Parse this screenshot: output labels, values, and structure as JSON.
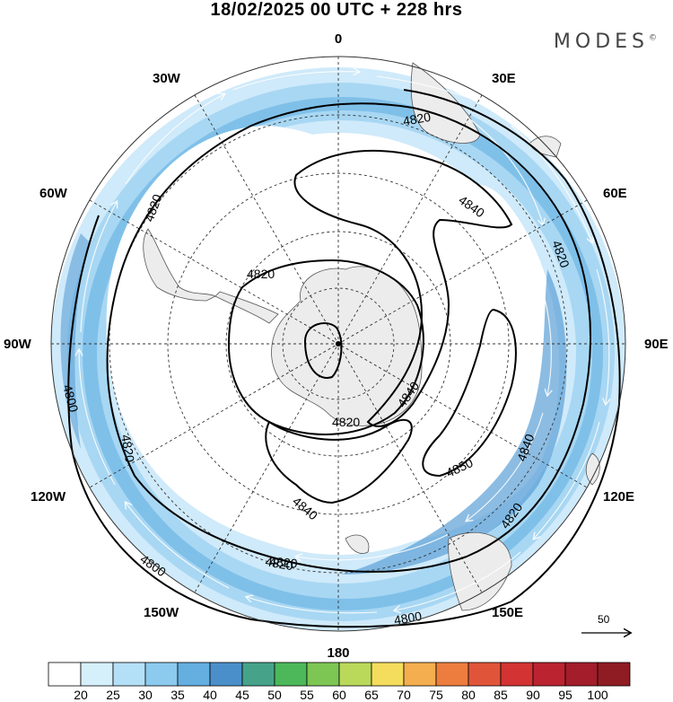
{
  "title": "18/02/2025  00 UTC  + 228 hrs",
  "brand": "MODES",
  "brand_mark": "©",
  "longitude_labels": {
    "lon_0": "0",
    "lon_30e": "30E",
    "lon_60e": "60E",
    "lon_90e": "90E",
    "lon_120e": "120E",
    "lon_150e": "150E",
    "lon_180": "180",
    "lon_150w": "150W",
    "lon_120w": "120W",
    "lon_90w": "90W",
    "lon_60w": "60W",
    "lon_30w": "30W"
  },
  "contour_labels": [
    "4820",
    "4840",
    "4820",
    "4820",
    "4820",
    "4820",
    "4800",
    "4820",
    "4820",
    "4840",
    "4840",
    "4850",
    "4840",
    "4820",
    "4820",
    "4800",
    "4800"
  ],
  "reference_vector": "50",
  "colorbar": {
    "labels": [
      "20",
      "25",
      "30",
      "35",
      "40",
      "45",
      "50",
      "55",
      "60",
      "65",
      "70",
      "75",
      "80",
      "85",
      "90",
      "95",
      "100"
    ],
    "colors": [
      "#ffffff",
      "#d5effb",
      "#b4e0f7",
      "#8ccaee",
      "#64aee0",
      "#4b8fca",
      "#46a38a",
      "#4cb85a",
      "#7dc653",
      "#bad85a",
      "#f4dd5c",
      "#f4ae4f",
      "#ec7d3f",
      "#e0553a",
      "#d33333",
      "#bb2330",
      "#a31d2b",
      "#8f1c22"
    ]
  }
}
